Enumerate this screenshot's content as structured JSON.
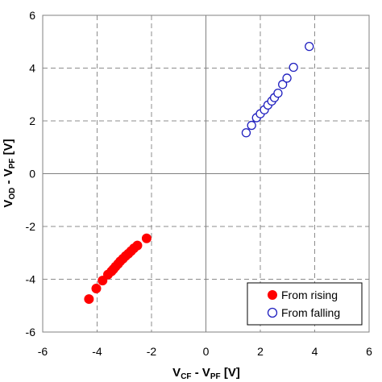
{
  "chart_data": {
    "type": "scatter",
    "title": "",
    "xlabel": {
      "main": "V",
      "sub1": "CF",
      "mid": " - V",
      "sub2": "PF",
      "unit": " [V]"
    },
    "ylabel": {
      "main": "V",
      "sub1": "OD",
      "mid": " - V",
      "sub2": "PF",
      "unit": " [V]"
    },
    "xlim": [
      -6,
      6
    ],
    "ylim": [
      -6,
      6
    ],
    "xticks": [
      "-6",
      "-4",
      "-2",
      "0",
      "2",
      "4",
      "6"
    ],
    "yticks": [
      "6",
      "4",
      "2",
      "0",
      "-2",
      "-4",
      "-6"
    ],
    "grid": true,
    "legend_position": "bottom-right",
    "series": [
      {
        "name": "From rising",
        "marker": "filled-circle",
        "color": "#ff0000",
        "points": [
          [
            -4.3,
            -4.75
          ],
          [
            -4.03,
            -4.35
          ],
          [
            -3.8,
            -4.05
          ],
          [
            -3.6,
            -3.82
          ],
          [
            -3.47,
            -3.7
          ],
          [
            -3.4,
            -3.62
          ],
          [
            -3.32,
            -3.52
          ],
          [
            -3.23,
            -3.42
          ],
          [
            -3.15,
            -3.32
          ],
          [
            -3.05,
            -3.22
          ],
          [
            -2.95,
            -3.12
          ],
          [
            -2.85,
            -3.03
          ],
          [
            -2.75,
            -2.93
          ],
          [
            -2.65,
            -2.83
          ],
          [
            -2.52,
            -2.72
          ],
          [
            -2.18,
            -2.45
          ]
        ]
      },
      {
        "name": "From falling",
        "marker": "open-circle",
        "color": "#1f1fbf",
        "points": [
          [
            1.48,
            1.55
          ],
          [
            1.68,
            1.83
          ],
          [
            1.86,
            2.12
          ],
          [
            2.0,
            2.27
          ],
          [
            2.15,
            2.42
          ],
          [
            2.28,
            2.6
          ],
          [
            2.42,
            2.75
          ],
          [
            2.52,
            2.88
          ],
          [
            2.65,
            3.05
          ],
          [
            2.82,
            3.38
          ],
          [
            2.98,
            3.62
          ],
          [
            3.22,
            4.03
          ],
          [
            3.8,
            4.82
          ]
        ]
      }
    ]
  }
}
